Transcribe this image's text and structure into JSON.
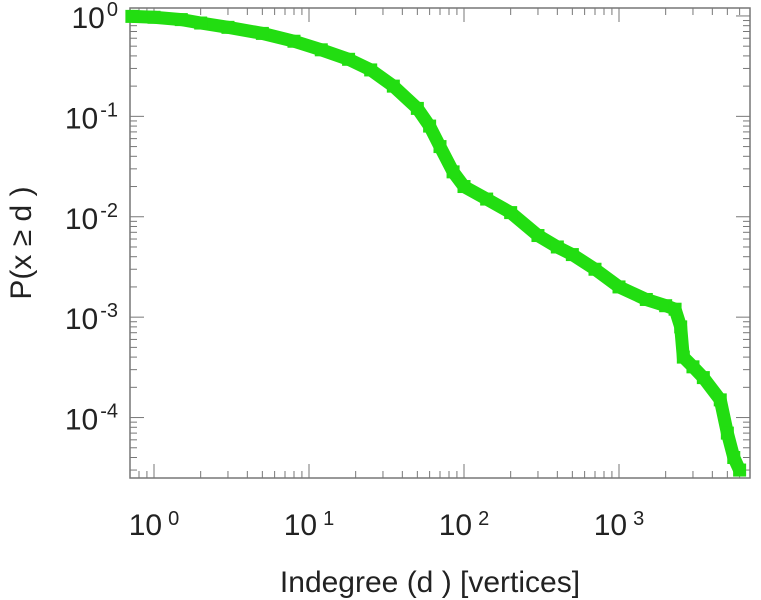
{
  "chart_data": {
    "type": "line",
    "title": "",
    "xlabel": "Indegree (d   ) [vertices]",
    "ylabel": "P(x ≥ d )",
    "x_scale": "log",
    "y_scale": "log",
    "xlim": [
      0.7,
      7000
    ],
    "ylim": [
      2.5e-05,
      1.2
    ],
    "grid": false,
    "x_ticks": [
      {
        "base": "10",
        "exp": "0"
      },
      {
        "base": "10",
        "exp": "1"
      },
      {
        "base": "10",
        "exp": "2"
      },
      {
        "base": "10",
        "exp": "3"
      }
    ],
    "y_ticks": [
      {
        "base": "10",
        "exp": "0"
      },
      {
        "base": "10",
        "exp": "-1"
      },
      {
        "base": "10",
        "exp": "-2"
      },
      {
        "base": "10",
        "exp": "-3"
      },
      {
        "base": "10",
        "exp": "-4"
      }
    ],
    "series": [
      {
        "color": "#22dd11",
        "points": [
          [
            0.72,
            0.99
          ],
          [
            1,
            0.97
          ],
          [
            1.5,
            0.92
          ],
          [
            2,
            0.85
          ],
          [
            3,
            0.77
          ],
          [
            5,
            0.67
          ],
          [
            8,
            0.56
          ],
          [
            12,
            0.46
          ],
          [
            18,
            0.37
          ],
          [
            25,
            0.29
          ],
          [
            35,
            0.2
          ],
          [
            50,
            0.12
          ],
          [
            60,
            0.08
          ],
          [
            70,
            0.05
          ],
          [
            85,
            0.028
          ],
          [
            100,
            0.02
          ],
          [
            140,
            0.015
          ],
          [
            200,
            0.011
          ],
          [
            300,
            0.0065
          ],
          [
            400,
            0.005
          ],
          [
            500,
            0.0042
          ],
          [
            700,
            0.003
          ],
          [
            1000,
            0.002
          ],
          [
            1500,
            0.0015
          ],
          [
            2000,
            0.0013
          ],
          [
            2300,
            0.0012
          ],
          [
            2500,
            0.0008
          ],
          [
            2600,
            0.0004
          ],
          [
            3000,
            0.00032
          ],
          [
            3500,
            0.00025
          ],
          [
            4500,
            0.00015
          ],
          [
            5000,
            7e-05
          ],
          [
            5500,
            4e-05
          ],
          [
            6000,
            3e-05
          ]
        ]
      }
    ]
  }
}
